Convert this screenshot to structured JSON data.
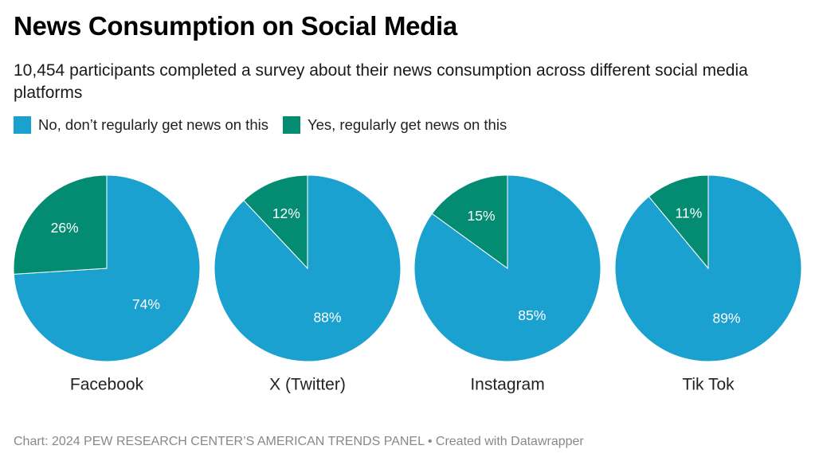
{
  "title": "News Consumption on Social Media",
  "subtitle": "10,454 participants completed a survey about their news consumption across different social media platforms",
  "legend": [
    {
      "label": "No, don’t regularly get news on this",
      "color": "#1ba1cf"
    },
    {
      "label": "Yes, regularly get news on this",
      "color": "#038c71"
    }
  ],
  "footer": "Chart: 2024 PEW RESEARCH CENTER’S AMERICAN TRENDS PANEL • Created with Datawrapper",
  "chart_data": {
    "type": "pie",
    "title": "News Consumption on Social Media",
    "series_names": [
      "No, don’t regularly get news on this",
      "Yes, regularly get news on this"
    ],
    "colors": {
      "no": "#1ba1cf",
      "yes": "#038c71"
    },
    "pies": [
      {
        "name": "Facebook",
        "no": 74,
        "yes": 26,
        "no_label": "74%",
        "yes_label": "26%"
      },
      {
        "name": "X (Twitter)",
        "no": 88,
        "yes": 12,
        "no_label": "88%",
        "yes_label": "12%"
      },
      {
        "name": "Instagram",
        "no": 85,
        "yes": 15,
        "no_label": "85%",
        "yes_label": "15%"
      },
      {
        "name": "Tik Tok",
        "no": 89,
        "yes": 11,
        "no_label": "89%",
        "yes_label": "11%"
      }
    ]
  }
}
